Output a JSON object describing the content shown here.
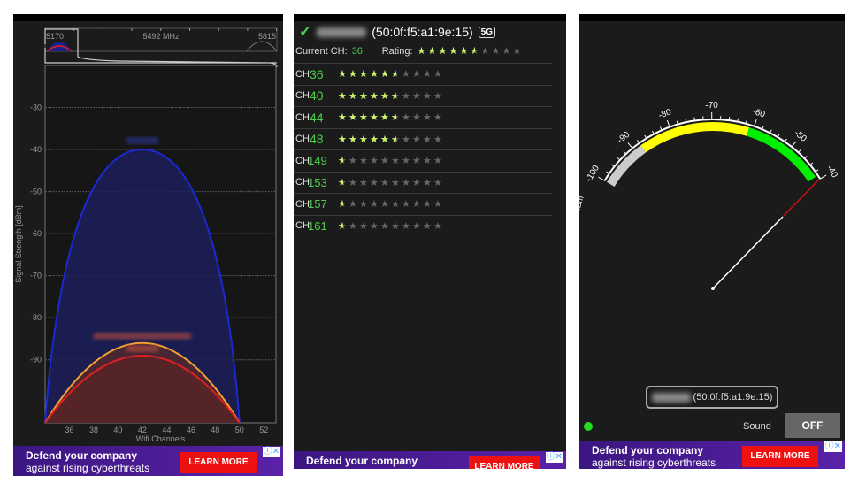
{
  "left_panel": {
    "overview": {
      "freq_start": "5170",
      "freq_center": "5492 MHz",
      "freq_end": "5815"
    },
    "chart_data": {
      "type": "area",
      "xlabel": "Wifi Channels",
      "ylabel": "Signal Strength [dBm]",
      "xlim": [
        34,
        53
      ],
      "ylim": [
        -105,
        -20
      ],
      "x_ticks": [
        36,
        38,
        40,
        42,
        44,
        46,
        48,
        50,
        52
      ],
      "y_ticks": [
        -30,
        -40,
        -50,
        -60,
        -70,
        -80,
        -90
      ],
      "grid": true,
      "series": [
        {
          "center_channel": 42,
          "span": [
            34,
            50
          ],
          "peak_dbm": -40,
          "color": "#1a2ad0",
          "fill": "#1c1f5a"
        },
        {
          "center_channel": 42,
          "span": [
            34,
            50
          ],
          "peak_dbm": -86,
          "color": "#f0a030",
          "fill": "#5a2a2a"
        },
        {
          "center_channel": 42,
          "span": [
            34,
            50
          ],
          "peak_dbm": -89,
          "color": "#e02020",
          "fill": "#5a2424"
        }
      ]
    },
    "ad": {
      "line1": "Defend your company",
      "line2": "against rising cyberthreats",
      "cta": "LEARN MORE",
      "info": "ⓘ✕"
    }
  },
  "middle_panel": {
    "bssid": "(50:0f:f5:a1:9e:15)",
    "band": "5G",
    "current_ch_label": "Current CH:",
    "current_ch": "36",
    "rating_label": "Rating:",
    "rating": 5.5,
    "max_rating": 10,
    "channels": [
      {
        "label": "CH",
        "ch": "36",
        "rating": 5.5
      },
      {
        "label": "CH",
        "ch": "40",
        "rating": 5.5
      },
      {
        "label": "CH",
        "ch": "44",
        "rating": 5.5
      },
      {
        "label": "CH",
        "ch": "48",
        "rating": 5.5
      },
      {
        "label": "CH",
        "ch": "149",
        "rating": 0.5
      },
      {
        "label": "CH",
        "ch": "153",
        "rating": 0.5
      },
      {
        "label": "CH",
        "ch": "157",
        "rating": 0.5
      },
      {
        "label": "CH",
        "ch": "161",
        "rating": 0.5
      }
    ],
    "ad": {
      "line1": "Defend your company",
      "cta": "LEARN MORE",
      "info": "ⓘ✕"
    }
  },
  "right_panel": {
    "gauge": {
      "unit": "dBm",
      "min": -100,
      "max": -40,
      "labels": [
        "-100",
        "-90",
        "-80",
        "-70",
        "-60",
        "-50",
        "-40"
      ],
      "value": -40,
      "zones": [
        {
          "from": -100,
          "to": -88,
          "color": "#cccccc"
        },
        {
          "from": -88,
          "to": -61,
          "color": "#ffff00"
        },
        {
          "from": -61,
          "to": -41,
          "color": "#00ee00"
        }
      ]
    },
    "bssid": "(50:0f:f5:a1:9e:15)",
    "sound_label": "Sound",
    "sound_state": "OFF",
    "ad": {
      "line1": "Defend your company",
      "line2": "against rising cyberthreats",
      "cta": "LEARN MORE",
      "info": "ⓘ✕"
    }
  }
}
